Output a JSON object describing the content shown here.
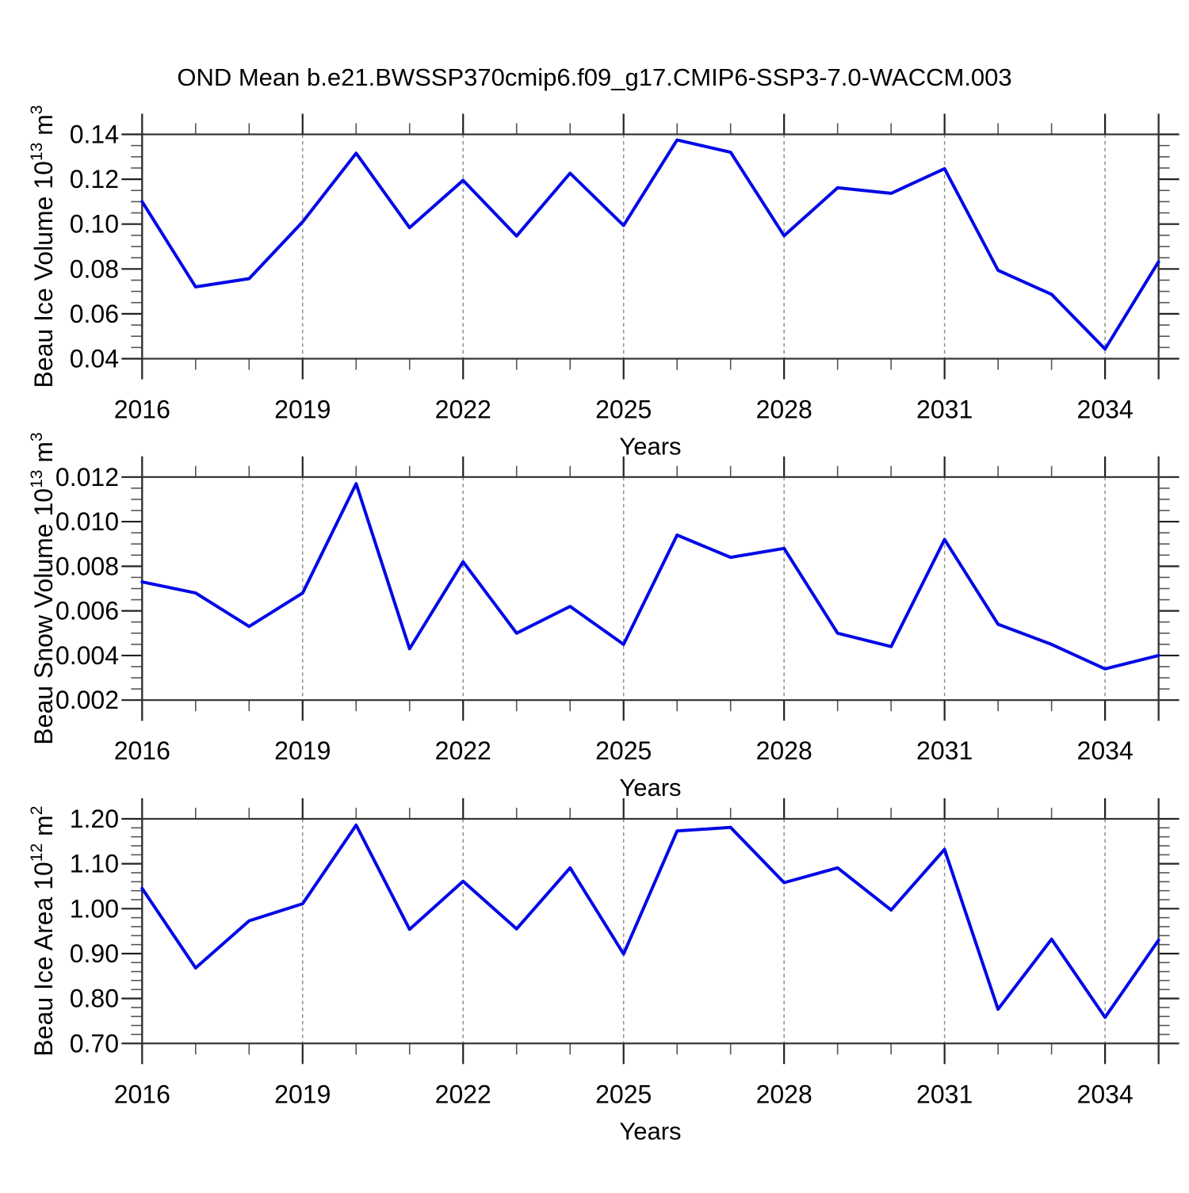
{
  "title": "OND Mean b.e21.BWSSP370cmip6.f09_g17.CMIP6-SSP3-7.0-WACCM.003",
  "style": {
    "line_color": "#0008e6",
    "frame_color": "#333333",
    "grid_color": "#8f8f8f",
    "tick_major_color": "#222222",
    "tick_minor_color": "#555555",
    "text_color": "#000000",
    "background_color": "#ffffff"
  },
  "x_years": [
    2016,
    2017,
    2018,
    2019,
    2020,
    2021,
    2022,
    2023,
    2024,
    2025,
    2026,
    2027,
    2028,
    2029,
    2030,
    2031,
    2032,
    2033,
    2034,
    2035
  ],
  "x_range": [
    2016,
    2035
  ],
  "chart_data": [
    {
      "id": "ice-volume",
      "type": "line",
      "xlabel": "Years",
      "ylabel": "Beau Ice Volume 10^13 m^3",
      "ylabel_rich": [
        [
          "Beau Ice Volume 10",
          0
        ],
        [
          "13",
          1
        ],
        [
          " m",
          0
        ],
        [
          "3",
          1
        ]
      ],
      "ylim": [
        0.04,
        0.14
      ],
      "ymajor_step": 0.02,
      "yminor_step": 0.005,
      "yticks": [
        {
          "value": 0.14,
          "label": "0.14"
        },
        {
          "value": 0.12,
          "label": "0.12"
        },
        {
          "value": 0.1,
          "label": "0.10"
        },
        {
          "value": 0.08,
          "label": "0.08"
        },
        {
          "value": 0.06,
          "label": "0.06"
        },
        {
          "value": 0.04,
          "label": "0.04"
        }
      ],
      "x_major_ticks": [
        2016,
        2019,
        2022,
        2025,
        2028,
        2031,
        2034
      ],
      "grid": "dashed-vertical",
      "values": [
        0.11,
        0.072,
        0.0757,
        0.101,
        0.1316,
        0.0984,
        0.1195,
        0.0947,
        0.1227,
        0.0994,
        0.1375,
        0.132,
        0.0948,
        0.1162,
        0.1137,
        0.1247,
        0.0794,
        0.0687,
        0.0443,
        0.0832
      ]
    },
    {
      "id": "snow-volume",
      "type": "line",
      "xlabel": "Years",
      "ylabel": "Beau Snow Volume 10^13 m^3",
      "ylabel_rich": [
        [
          "Beau Snow Volume 10",
          0
        ],
        [
          "13",
          1
        ],
        [
          " m",
          0
        ],
        [
          "3",
          1
        ]
      ],
      "ylim": [
        0.002,
        0.012
      ],
      "ymajor_step": 0.002,
      "yminor_step": 0.0005,
      "yticks": [
        {
          "value": 0.012,
          "label": "0.012"
        },
        {
          "value": 0.01,
          "label": "0.010"
        },
        {
          "value": 0.008,
          "label": "0.008"
        },
        {
          "value": 0.006,
          "label": "0.006"
        },
        {
          "value": 0.004,
          "label": "0.004"
        },
        {
          "value": 0.002,
          "label": "0.002"
        }
      ],
      "x_major_ticks": [
        2016,
        2019,
        2022,
        2025,
        2028,
        2031,
        2034
      ],
      "grid": "dashed-vertical",
      "values": [
        0.0073,
        0.0068,
        0.0053,
        0.0068,
        0.0117,
        0.0043,
        0.0082,
        0.005,
        0.0062,
        0.0045,
        0.0094,
        0.0084,
        0.0088,
        0.005,
        0.0044,
        0.0092,
        0.0054,
        0.0045,
        0.0034,
        0.004
      ]
    },
    {
      "id": "ice-area",
      "type": "line",
      "xlabel": "Years",
      "ylabel": "Beau Ice Area 10^12 m^2",
      "ylabel_rich": [
        [
          "Beau Ice Area 10",
          0
        ],
        [
          "12",
          1
        ],
        [
          " m",
          0
        ],
        [
          "2",
          1
        ]
      ],
      "ylim": [
        0.7,
        1.2
      ],
      "ymajor_step": 0.1,
      "yminor_step": 0.02,
      "yticks": [
        {
          "value": 1.2,
          "label": "1.20"
        },
        {
          "value": 1.1,
          "label": "1.10"
        },
        {
          "value": 1.0,
          "label": "1.00"
        },
        {
          "value": 0.9,
          "label": "0.90"
        },
        {
          "value": 0.8,
          "label": "0.80"
        },
        {
          "value": 0.7,
          "label": "0.70"
        }
      ],
      "x_major_ticks": [
        2016,
        2019,
        2022,
        2025,
        2028,
        2031,
        2034
      ],
      "grid": "dashed-vertical",
      "values": [
        1.045,
        0.868,
        0.973,
        1.011,
        1.186,
        0.954,
        1.061,
        0.955,
        1.091,
        0.899,
        1.173,
        1.181,
        1.058,
        1.091,
        0.997,
        1.132,
        0.776,
        0.932,
        0.758,
        0.93
      ]
    }
  ]
}
